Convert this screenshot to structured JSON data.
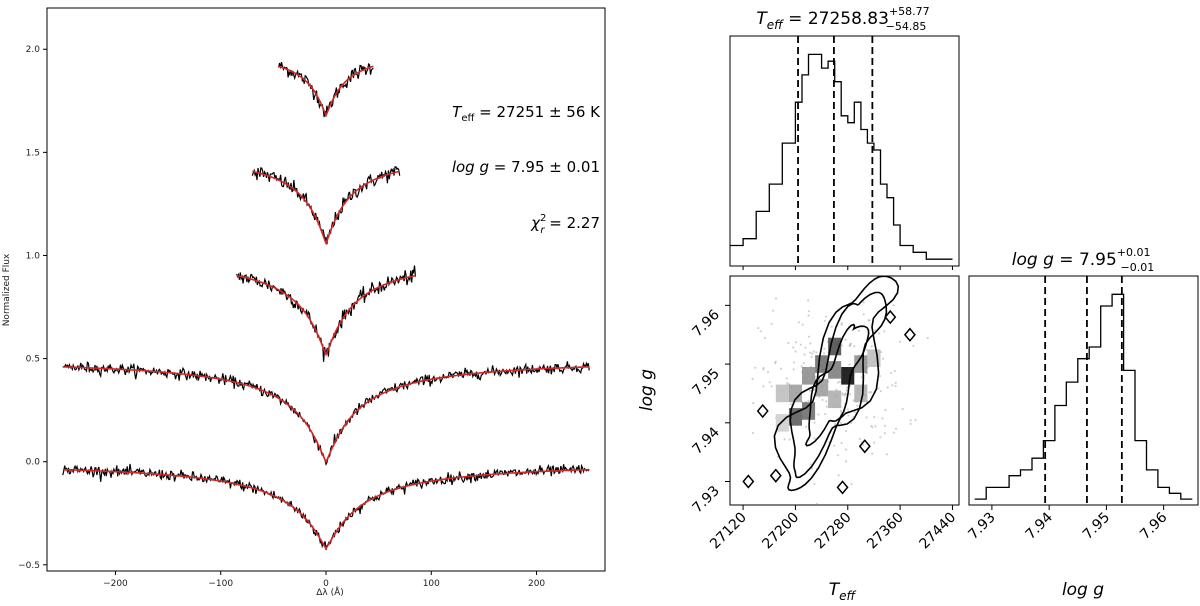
{
  "chart_data": [
    {
      "type": "line",
      "xlabel": "Δλ (Å)",
      "ylabel": "Normalized Flux",
      "xlim": [
        -265,
        265
      ],
      "ylim": [
        -0.53,
        2.2
      ],
      "xticks": [
        -200,
        -100,
        0,
        100,
        200
      ],
      "yticks": [
        -0.5,
        0.0,
        0.5,
        1.0,
        1.5,
        2.0
      ],
      "xtick_labels": [
        "−200",
        "−100",
        "0",
        "100",
        "200"
      ],
      "ytick_labels": [
        "−0.5",
        "0.0",
        "0.5",
        "1.0",
        "1.5",
        "2.0"
      ],
      "colors": {
        "observed": "#000000",
        "model": "#d62728"
      },
      "series": [
        {
          "offset": 2.0,
          "half_width": 45,
          "depth": 0.32,
          "width": 18
        },
        {
          "offset": 1.5,
          "half_width": 70,
          "depth": 0.44,
          "width": 22
        },
        {
          "offset": 1.0,
          "half_width": 85,
          "depth": 0.48,
          "width": 26
        },
        {
          "offset": 0.5,
          "half_width": 250,
          "depth": 0.5,
          "width": 30
        },
        {
          "offset": 0.0,
          "half_width": 250,
          "depth": 0.42,
          "width": 34
        }
      ],
      "annotations": {
        "teff_lhs": "T",
        "teff_sub": "eff",
        "teff_rhs": " = 27251 ± 56 K",
        "logg_lhs": "log g",
        "logg_rhs": " = 7.95 ± 0.01",
        "chi_lhs": "χ",
        "chi_sup": "2",
        "chi_sub": "r",
        "chi_rhs": " = 2.27"
      }
    },
    {
      "type": "histogram",
      "parameter": "T_eff",
      "title_lhs": "T",
      "title_sub": "eff",
      "title_value": " = 27258.83",
      "title_plus": "+58.77",
      "title_minus": "−54.85",
      "xlim": [
        27100,
        27450
      ],
      "quantiles": [
        27204,
        27258.83,
        27317.6
      ],
      "bin_edges": [
        27100,
        27120,
        27140,
        27160,
        27180,
        27200,
        27210,
        27220,
        27230,
        27240,
        27250,
        27260,
        27270,
        27280,
        27290,
        27300,
        27310,
        27320,
        27330,
        27340,
        27350,
        27360,
        27380,
        27400,
        27420,
        27440
      ],
      "counts": [
        3,
        4,
        8,
        12,
        18,
        24,
        28,
        31,
        31,
        29,
        30,
        27,
        22,
        21,
        24,
        20,
        18,
        17,
        12,
        10,
        6,
        3,
        2,
        1,
        1
      ]
    },
    {
      "type": "heatmap",
      "xlabel_main": "T",
      "xlabel_sub": "eff",
      "ylabel": "log g",
      "xlim": [
        27100,
        27450
      ],
      "ylim": [
        7.926,
        7.965
      ],
      "xticks": [
        27120,
        27200,
        27280,
        27360,
        27440
      ],
      "yticks": [
        7.93,
        7.94,
        7.95,
        7.96
      ],
      "xtick_labels": [
        "27120",
        "27200",
        "27280",
        "27360",
        "27440"
      ],
      "ytick_labels": [
        "7.93",
        "7.94",
        "7.95",
        "7.96"
      ]
    },
    {
      "type": "histogram",
      "parameter": "log g",
      "title_lhs": "log g",
      "title_value": " = 7.95",
      "title_plus": "+0.01",
      "title_minus": "−0.01",
      "xlabel": "log g",
      "xlim": [
        7.926,
        7.966
      ],
      "xticks": [
        7.93,
        7.94,
        7.95,
        7.96
      ],
      "xtick_labels": [
        "7.93",
        "7.94",
        "7.95",
        "7.96"
      ],
      "quantiles": [
        7.9393,
        7.9466,
        7.9527
      ],
      "bin_edges": [
        7.927,
        7.929,
        7.931,
        7.933,
        7.935,
        7.937,
        7.939,
        7.941,
        7.943,
        7.945,
        7.947,
        7.949,
        7.951,
        7.953,
        7.955,
        7.957,
        7.959,
        7.961,
        7.963,
        7.965
      ],
      "counts": [
        1,
        3,
        3,
        5,
        6,
        8,
        11,
        17,
        21,
        25,
        27,
        34,
        36,
        23,
        11,
        6,
        3,
        2,
        1
      ]
    }
  ]
}
